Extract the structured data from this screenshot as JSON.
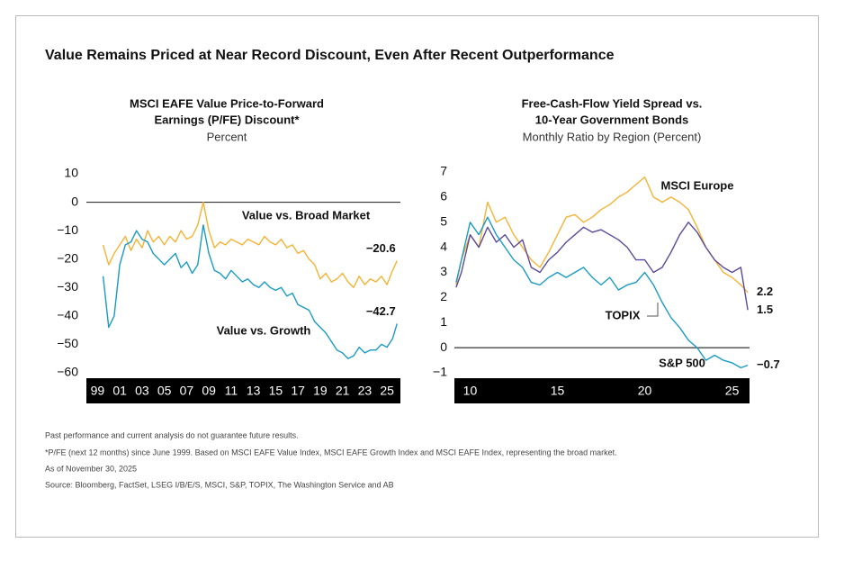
{
  "title": "Value Remains Priced at Near Record Discount, Even After Recent Outperformance",
  "chart_data": [
    {
      "type": "line",
      "title": [
        "MSCI EAFE Value Price-to-Forward",
        "Earnings (P/FE) Discount*"
      ],
      "subtitle": "Percent",
      "x": [
        1999.5,
        2000,
        2000.5,
        2001,
        2001.5,
        2002,
        2002.5,
        2003,
        2003.5,
        2004,
        2004.5,
        2005,
        2005.5,
        2006,
        2006.5,
        2007,
        2007.5,
        2008,
        2008.5,
        2009,
        2009.5,
        2010,
        2010.5,
        2011,
        2011.5,
        2012,
        2012.5,
        2013,
        2013.5,
        2014,
        2014.5,
        2015,
        2015.5,
        2016,
        2016.5,
        2017,
        2017.5,
        2018,
        2018.5,
        2019,
        2019.5,
        2020,
        2020.5,
        2021,
        2021.5,
        2022,
        2022.5,
        2023,
        2023.5,
        2024,
        2024.5,
        2025,
        2025.5,
        2025.9
      ],
      "series": [
        {
          "name": "Value vs. Broad Market",
          "color": "#f5b335",
          "values": [
            -15,
            -22,
            -18,
            -15,
            -12,
            -17,
            -13,
            -16,
            -10,
            -14,
            -12,
            -15,
            -12,
            -14,
            -10,
            -13,
            -12,
            -8,
            0,
            -10,
            -16,
            -14,
            -15,
            -13,
            -14,
            -15,
            -13,
            -14,
            -15,
            -12,
            -14,
            -15,
            -13,
            -16,
            -15,
            -18,
            -17,
            -20,
            -22,
            -27,
            -25,
            -28,
            -27,
            -25,
            -28,
            -30,
            -26,
            -29,
            -27,
            -28,
            -26,
            -29,
            -24,
            -20.6
          ],
          "value_labels": [
            null,
            null,
            null,
            null,
            null,
            null,
            null,
            null,
            null,
            null,
            null,
            null,
            null,
            null,
            null,
            null,
            null,
            null,
            null,
            null,
            null,
            null,
            null,
            null,
            null,
            null,
            null,
            null,
            null,
            null,
            null,
            null,
            null,
            null,
            null,
            null,
            null,
            null,
            null,
            null,
            null,
            null,
            null,
            null,
            null,
            null,
            null,
            null,
            null,
            null,
            null,
            null,
            null,
            "−20.6"
          ]
        },
        {
          "name": "Value vs. Growth",
          "color": "#1a9bc4",
          "values": [
            -26,
            -44,
            -40,
            -22,
            -15,
            -14,
            -10,
            -13,
            -14,
            -18,
            -20,
            -22,
            -20,
            -18,
            -23,
            -21,
            -25,
            -22,
            -8,
            -18,
            -24,
            -25,
            -27,
            -24,
            -26,
            -28,
            -27,
            -29,
            -30,
            -28,
            -30,
            -31,
            -30,
            -33,
            -32,
            -36,
            -37,
            -38,
            -42,
            -44,
            -46,
            -49,
            -52,
            -53,
            -55,
            -54,
            -51,
            -53,
            -52,
            -52,
            -50,
            -51,
            -48,
            -42.7
          ],
          "value_labels": [
            null,
            null,
            null,
            null,
            null,
            null,
            null,
            null,
            null,
            null,
            null,
            null,
            null,
            null,
            null,
            null,
            null,
            null,
            null,
            null,
            null,
            null,
            null,
            null,
            null,
            null,
            null,
            null,
            null,
            null,
            null,
            null,
            null,
            null,
            null,
            null,
            null,
            null,
            null,
            null,
            null,
            null,
            null,
            null,
            null,
            null,
            null,
            null,
            null,
            null,
            null,
            null,
            null,
            "−42.7"
          ]
        }
      ],
      "xlim": [
        1998,
        2026.2
      ],
      "xticks": [
        {
          "value": 1999,
          "label": "99"
        },
        {
          "value": 2001,
          "label": "01"
        },
        {
          "value": 2003,
          "label": "03"
        },
        {
          "value": 2005,
          "label": "05"
        },
        {
          "value": 2007,
          "label": "07"
        },
        {
          "value": 2009,
          "label": "09"
        },
        {
          "value": 2011,
          "label": "11"
        },
        {
          "value": 2013,
          "label": "13"
        },
        {
          "value": 2015,
          "label": "15"
        },
        {
          "value": 2017,
          "label": "17"
        },
        {
          "value": 2019,
          "label": "19"
        },
        {
          "value": 2021,
          "label": "21"
        },
        {
          "value": 2023,
          "label": "23"
        },
        {
          "value": 2025,
          "label": "25"
        }
      ],
      "ylim": [
        -60,
        10
      ],
      "yticks": [
        10,
        0,
        {
          "value": -10,
          "label": "−10"
        },
        {
          "value": -20,
          "label": "−20"
        },
        {
          "value": -30,
          "label": "−30"
        },
        {
          "value": -40,
          "label": "−40"
        },
        {
          "value": -50,
          "label": "−50"
        },
        {
          "value": -60,
          "label": "−60"
        }
      ],
      "hline": 0
    },
    {
      "type": "line",
      "title": [
        "Free-Cash-Flow Yield Spread vs.",
        "10-Year Government Bonds"
      ],
      "subtitle": "Monthly Ratio by Region (Percent)",
      "x": [
        2009.2,
        2009.5,
        2010,
        2010.5,
        2011,
        2011.5,
        2012,
        2012.5,
        2013,
        2013.5,
        2014,
        2014.5,
        2015,
        2015.5,
        2016,
        2016.5,
        2017,
        2017.5,
        2018,
        2018.5,
        2019,
        2019.5,
        2020,
        2020.5,
        2021,
        2021.5,
        2022,
        2022.5,
        2023,
        2023.5,
        2024,
        2024.5,
        2025,
        2025.5,
        2025.9
      ],
      "series": [
        {
          "name": "MSCI Europe",
          "color": "#f5b335",
          "values": [
            2.5,
            3.5,
            4.5,
            4.0,
            5.8,
            5.0,
            5.2,
            4.5,
            4.0,
            3.5,
            3.2,
            3.8,
            4.5,
            5.2,
            5.3,
            5.0,
            5.2,
            5.5,
            5.7,
            6.0,
            6.2,
            6.5,
            6.8,
            6.0,
            5.8,
            6.0,
            5.8,
            5.5,
            4.8,
            4.0,
            3.5,
            3.0,
            2.8,
            2.5,
            2.2
          ]
        },
        {
          "name": "TOPIX",
          "color": "#5b4a9c",
          "values": [
            2.4,
            3.0,
            4.5,
            4.0,
            4.8,
            4.2,
            4.5,
            4.0,
            4.3,
            3.2,
            3.0,
            3.5,
            3.8,
            4.2,
            4.5,
            4.8,
            4.6,
            4.7,
            4.5,
            4.3,
            4.0,
            3.5,
            3.5,
            3.0,
            3.2,
            3.8,
            4.5,
            5.0,
            4.6,
            4.0,
            3.5,
            3.2,
            3.0,
            3.2,
            1.5
          ]
        },
        {
          "name": "S&P 500",
          "color": "#1a9bc4",
          "values": [
            2.6,
            3.5,
            5.0,
            4.5,
            5.2,
            4.5,
            4.0,
            3.5,
            3.2,
            2.6,
            2.5,
            2.8,
            3.0,
            2.8,
            3.0,
            3.2,
            2.8,
            2.5,
            2.8,
            2.3,
            2.5,
            2.6,
            3.0,
            2.5,
            1.8,
            1.2,
            0.8,
            0.3,
            0.0,
            -0.5,
            -0.3,
            -0.5,
            -0.6,
            -0.8,
            -0.7
          ],
          "value_labels": [
            null,
            null,
            null,
            null,
            null,
            null,
            null,
            null,
            null,
            null,
            null,
            null,
            null,
            null,
            null,
            null,
            null,
            null,
            null,
            null,
            null,
            null,
            null,
            null,
            null,
            null,
            null,
            null,
            null,
            null,
            null,
            null,
            null,
            null,
            "−0.7"
          ]
        }
      ],
      "xlim": [
        2009.1,
        2026
      ],
      "xticks": [
        {
          "value": 2010,
          "label": "10"
        },
        {
          "value": 2015,
          "label": "15"
        },
        {
          "value": 2020,
          "label": "20"
        },
        {
          "value": 2025,
          "label": "25"
        }
      ],
      "ylim": [
        -1,
        7
      ],
      "yticks": [
        7,
        6,
        5,
        4,
        3,
        2,
        1,
        0,
        {
          "value": -1,
          "label": "−1"
        }
      ],
      "hline": 0
    }
  ],
  "footnotes": [
    "Past performance and current analysis do not guarantee future results.",
    "*P/FE (next 12 months) since June 1999. Based on MSCI EAFE Value Index, MSCI EAFE Growth Index and MSCI EAFE Index, representing the broad market.",
    "As of November 30, 2025",
    "Source: Bloomberg, FactSet, LSEG I/B/E/S, MSCI, S&P, TOPIX, The Washington Service and AB"
  ]
}
